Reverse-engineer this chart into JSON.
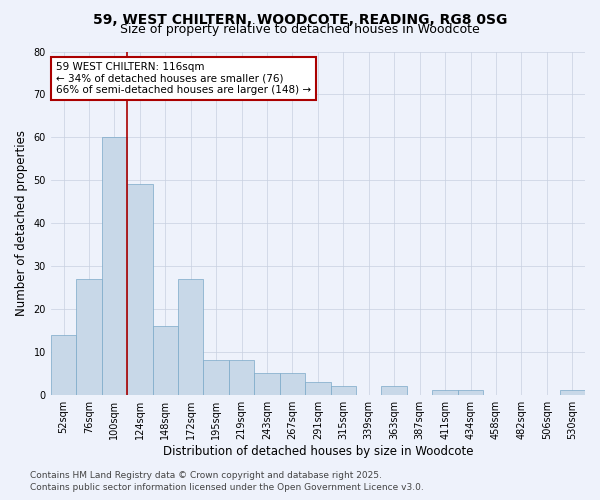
{
  "title_line1": "59, WEST CHILTERN, WOODCOTE, READING, RG8 0SG",
  "title_line2": "Size of property relative to detached houses in Woodcote",
  "xlabel": "Distribution of detached houses by size in Woodcote",
  "ylabel": "Number of detached properties",
  "categories": [
    "52sqm",
    "76sqm",
    "100sqm",
    "124sqm",
    "148sqm",
    "172sqm",
    "195sqm",
    "219sqm",
    "243sqm",
    "267sqm",
    "291sqm",
    "315sqm",
    "339sqm",
    "363sqm",
    "387sqm",
    "411sqm",
    "434sqm",
    "458sqm",
    "482sqm",
    "506sqm",
    "530sqm"
  ],
  "values": [
    14,
    27,
    60,
    49,
    16,
    27,
    8,
    8,
    5,
    5,
    3,
    2,
    0,
    2,
    0,
    1,
    1,
    0,
    0,
    0,
    1
  ],
  "bar_color": "#c8d8e8",
  "bar_edge_color": "#7aa8c8",
  "vline_x_idx": 2,
  "vline_color": "#aa0000",
  "annotation_text_line1": "59 WEST CHILTERN: 116sqm",
  "annotation_text_line2": "← 34% of detached houses are smaller (76)",
  "annotation_text_line3": "66% of semi-detached houses are larger (148) →",
  "annotation_box_color": "#ffffff",
  "annotation_box_edge": "#aa0000",
  "ylim": [
    0,
    80
  ],
  "yticks": [
    0,
    10,
    20,
    30,
    40,
    50,
    60,
    70,
    80
  ],
  "footer_line1": "Contains HM Land Registry data © Crown copyright and database right 2025.",
  "footer_line2": "Contains public sector information licensed under the Open Government Licence v3.0.",
  "bg_color": "#eef2fb",
  "title_fontsize": 10,
  "subtitle_fontsize": 9,
  "tick_fontsize": 7,
  "label_fontsize": 8.5,
  "annotation_fontsize": 7.5,
  "footer_fontsize": 6.5,
  "grid_color": "#c8d0e0"
}
